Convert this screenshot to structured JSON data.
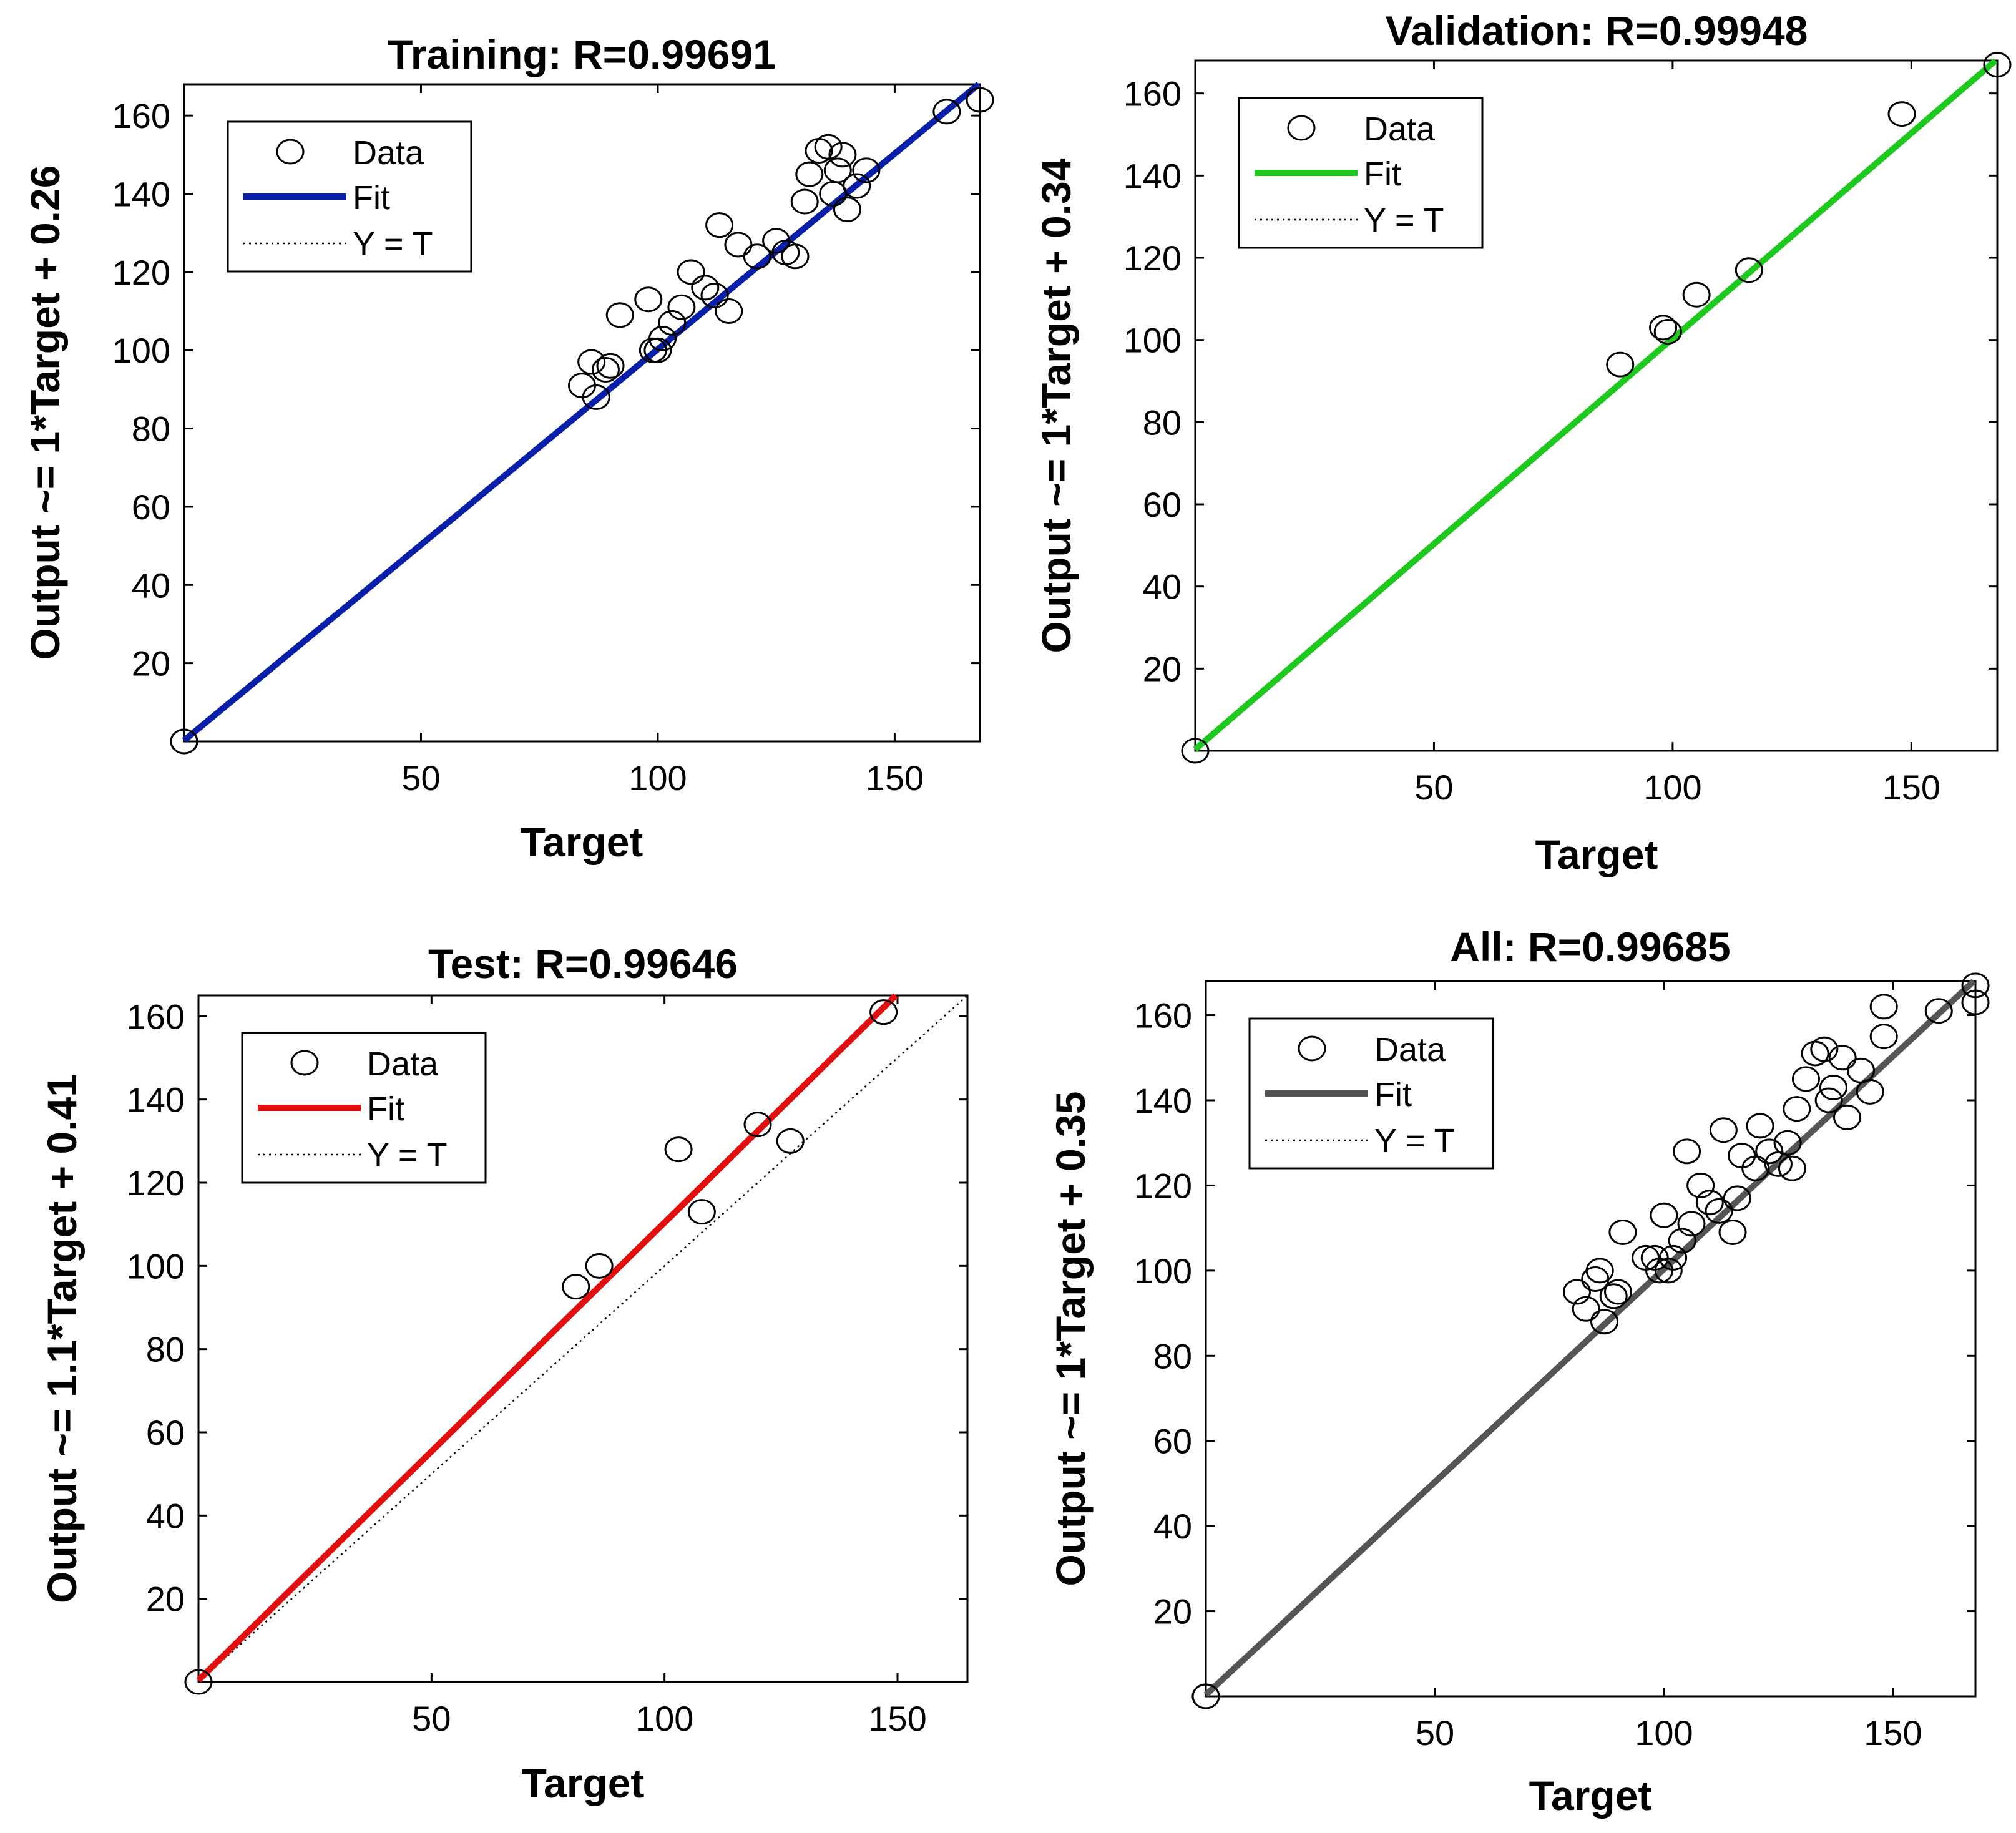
{
  "chart_data": [
    {
      "type": "scatter",
      "title": "Training: R=0.99691",
      "xlabel": "Target",
      "ylabel": "Output ~= 1*Target + 0.26",
      "xlim": [
        0,
        168
      ],
      "ylim": [
        0,
        168
      ],
      "xticks": [
        50,
        100,
        150
      ],
      "yticks": [
        20,
        40,
        60,
        80,
        100,
        120,
        140,
        160
      ],
      "fit": {
        "slope": 1,
        "intercept": 0.26,
        "color": "#0a1fa8"
      },
      "legend": [
        "Data",
        "Fit",
        "Y = T"
      ],
      "legend_position": "top-left",
      "points": [
        [
          0,
          0
        ],
        [
          0,
          0
        ],
        [
          84,
          91
        ],
        [
          86,
          97
        ],
        [
          87,
          88
        ],
        [
          89,
          95
        ],
        [
          90,
          96
        ],
        [
          92,
          109
        ],
        [
          98,
          113
        ],
        [
          99,
          100
        ],
        [
          100,
          100
        ],
        [
          101,
          103
        ],
        [
          103,
          107
        ],
        [
          105,
          111
        ],
        [
          107,
          120
        ],
        [
          110,
          116
        ],
        [
          112,
          114
        ],
        [
          113,
          132
        ],
        [
          115,
          110
        ],
        [
          117,
          127
        ],
        [
          121,
          124
        ],
        [
          125,
          128
        ],
        [
          127,
          125
        ],
        [
          129,
          124
        ],
        [
          131,
          138
        ],
        [
          132,
          145
        ],
        [
          134,
          151
        ],
        [
          136,
          152
        ],
        [
          137,
          140
        ],
        [
          138,
          146
        ],
        [
          139,
          150
        ],
        [
          140,
          136
        ],
        [
          142,
          142
        ],
        [
          144,
          146
        ],
        [
          161,
          161
        ],
        [
          168,
          164
        ]
      ]
    },
    {
      "type": "scatter",
      "title": "Validation: R=0.99948",
      "xlabel": "Target",
      "ylabel": "Output ~= 1*Target + 0.34",
      "xlim": [
        0,
        168
      ],
      "ylim": [
        0,
        168
      ],
      "xticks": [
        50,
        100,
        150
      ],
      "yticks": [
        20,
        40,
        60,
        80,
        100,
        120,
        140,
        160
      ],
      "fit": {
        "slope": 1,
        "intercept": 0.34,
        "color": "#1ec81e"
      },
      "legend": [
        "Data",
        "Fit",
        "Y = T"
      ],
      "legend_position": "top-left",
      "points": [
        [
          0,
          0
        ],
        [
          89,
          94
        ],
        [
          98,
          103
        ],
        [
          99,
          102
        ],
        [
          105,
          111
        ],
        [
          116,
          117
        ],
        [
          148,
          155
        ],
        [
          168,
          167
        ]
      ]
    },
    {
      "type": "scatter",
      "title": "Test: R=0.99646",
      "xlabel": "Target",
      "ylabel": "Output ~= 1.1*Target + 0.41",
      "xlim": [
        0,
        165
      ],
      "ylim": [
        0,
        165
      ],
      "xticks": [
        50,
        100,
        150
      ],
      "yticks": [
        20,
        40,
        60,
        80,
        100,
        120,
        140,
        160
      ],
      "fit": {
        "slope": 1.1,
        "intercept": 0.41,
        "color": "#e01010"
      },
      "legend": [
        "Data",
        "Fit",
        "Y = T"
      ],
      "legend_position": "top-left",
      "points": [
        [
          0,
          0
        ],
        [
          81,
          95
        ],
        [
          86,
          100
        ],
        [
          103,
          128
        ],
        [
          108,
          113
        ],
        [
          120,
          134
        ],
        [
          127,
          130
        ],
        [
          147,
          161
        ]
      ]
    },
    {
      "type": "scatter",
      "title": "All: R=0.99685",
      "xlabel": "Target",
      "ylabel": "Output ~= 1*Target + 0.35",
      "xlim": [
        0,
        168
      ],
      "ylim": [
        0,
        168
      ],
      "xticks": [
        50,
        100,
        150
      ],
      "yticks": [
        20,
        40,
        60,
        80,
        100,
        120,
        140,
        160
      ],
      "fit": {
        "slope": 1,
        "intercept": 0.35,
        "color": "#555555"
      },
      "legend": [
        "Data",
        "Fit",
        "Y = T"
      ],
      "legend_position": "top-left",
      "points": [
        [
          0,
          0
        ],
        [
          0,
          0
        ],
        [
          81,
          95
        ],
        [
          83,
          91
        ],
        [
          85,
          98
        ],
        [
          86,
          100
        ],
        [
          87,
          88
        ],
        [
          89,
          94
        ],
        [
          90,
          95
        ],
        [
          91,
          109
        ],
        [
          96,
          103
        ],
        [
          98,
          103
        ],
        [
          99,
          100
        ],
        [
          100,
          113
        ],
        [
          101,
          100
        ],
        [
          102,
          103
        ],
        [
          104,
          107
        ],
        [
          105,
          128
        ],
        [
          106,
          111
        ],
        [
          108,
          120
        ],
        [
          110,
          116
        ],
        [
          112,
          114
        ],
        [
          113,
          133
        ],
        [
          115,
          109
        ],
        [
          116,
          117
        ],
        [
          117,
          127
        ],
        [
          120,
          124
        ],
        [
          121,
          134
        ],
        [
          123,
          128
        ],
        [
          125,
          125
        ],
        [
          127,
          130
        ],
        [
          128,
          124
        ],
        [
          129,
          138
        ],
        [
          131,
          145
        ],
        [
          133,
          151
        ],
        [
          135,
          152
        ],
        [
          136,
          140
        ],
        [
          137,
          143
        ],
        [
          139,
          150
        ],
        [
          140,
          136
        ],
        [
          143,
          147
        ],
        [
          145,
          142
        ],
        [
          148,
          162
        ],
        [
          148,
          155
        ],
        [
          160,
          161
        ],
        [
          168,
          167
        ],
        [
          168,
          163
        ]
      ]
    }
  ]
}
